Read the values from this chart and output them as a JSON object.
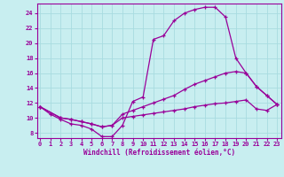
{
  "xlabel": "Windchill (Refroidissement éolien,°C)",
  "background_color": "#c8eef0",
  "grid_color": "#a8dce0",
  "line_color": "#990099",
  "xlim_min": -0.3,
  "xlim_max": 23.4,
  "ylim_min": 7.3,
  "ylim_max": 25.3,
  "yticks": [
    8,
    10,
    12,
    14,
    16,
    18,
    20,
    22,
    24
  ],
  "xticks": [
    0,
    1,
    2,
    3,
    4,
    5,
    6,
    7,
    8,
    9,
    10,
    11,
    12,
    13,
    14,
    15,
    16,
    17,
    18,
    19,
    20,
    21,
    22,
    23
  ],
  "s1_x": [
    0,
    1,
    2,
    3,
    4,
    5,
    6,
    7,
    8,
    9,
    10,
    11,
    12,
    13,
    14,
    15,
    16,
    17,
    18,
    19,
    20,
    21,
    22,
    23
  ],
  "s1_y": [
    11.5,
    10.5,
    9.8,
    9.2,
    9.0,
    8.5,
    7.5,
    7.5,
    9.0,
    12.2,
    12.8,
    20.5,
    21.0,
    23.0,
    24.0,
    24.5,
    24.8,
    24.8,
    23.5,
    18.0,
    16.0,
    14.2,
    13.0,
    11.8
  ],
  "s2_x": [
    0,
    2,
    3,
    4,
    5,
    6,
    7,
    8,
    9,
    10,
    11,
    12,
    13,
    14,
    15,
    16,
    17,
    18,
    19,
    20,
    21,
    22,
    23
  ],
  "s2_y": [
    11.5,
    10.0,
    9.8,
    9.5,
    9.2,
    8.8,
    9.0,
    10.5,
    11.0,
    11.5,
    12.0,
    12.5,
    13.0,
    13.8,
    14.5,
    15.0,
    15.5,
    16.0,
    16.2,
    16.0,
    14.2,
    13.0,
    11.8
  ],
  "s3_x": [
    0,
    2,
    3,
    4,
    5,
    6,
    7,
    8,
    9,
    10,
    11,
    12,
    13,
    14,
    15,
    16,
    17,
    18,
    19,
    20,
    21,
    22,
    23
  ],
  "s3_y": [
    11.5,
    10.0,
    9.8,
    9.5,
    9.2,
    8.8,
    9.0,
    10.0,
    10.2,
    10.4,
    10.6,
    10.8,
    11.0,
    11.2,
    11.5,
    11.7,
    11.9,
    12.0,
    12.2,
    12.4,
    11.2,
    11.0,
    11.8
  ],
  "tick_fontsize": 5.0,
  "xlabel_fontsize": 5.5
}
